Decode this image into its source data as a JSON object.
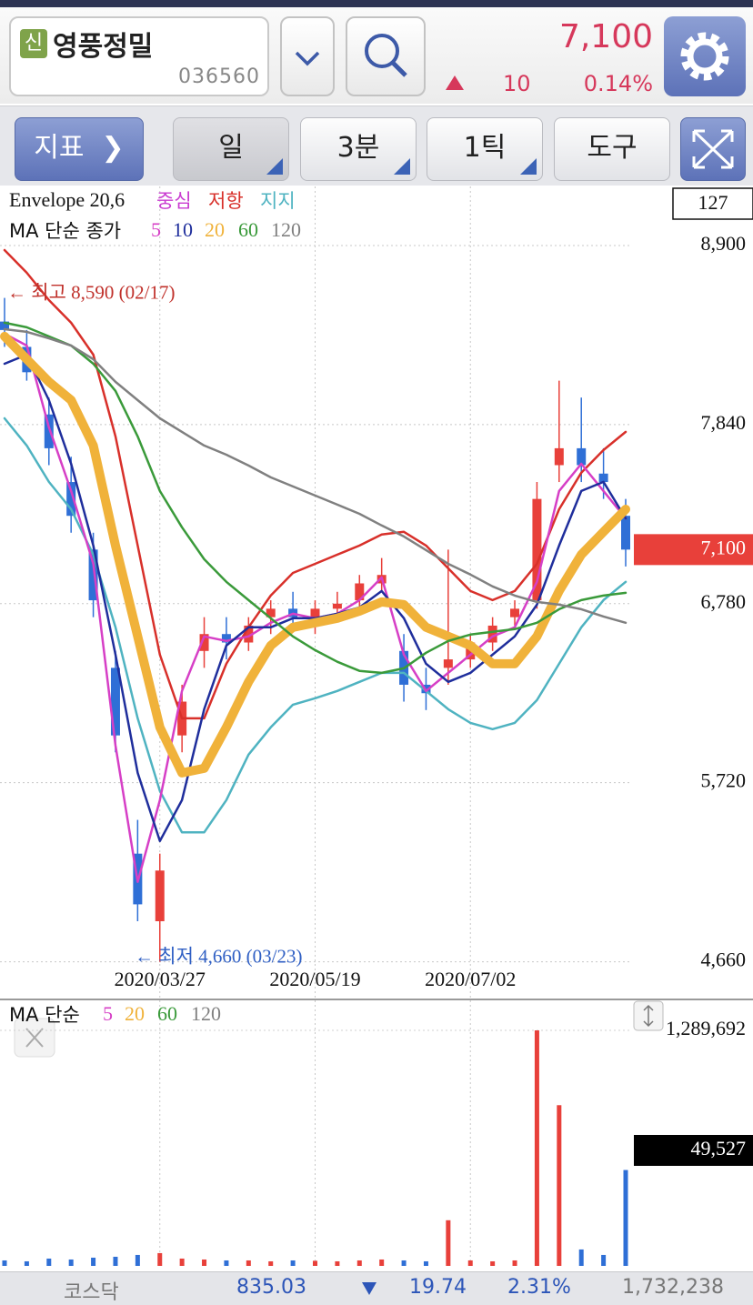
{
  "header": {
    "badge": "신",
    "name": "영풍정밀",
    "code": "036560",
    "price": "7,100",
    "change": "10",
    "change_pct": "0.14%"
  },
  "toolbar": {
    "indicator": "지표",
    "buttons": [
      "일",
      "3분",
      "1틱",
      "도구"
    ]
  },
  "chart_data": [
    {
      "type": "candlestick",
      "legend_title": "Envelope 20,6",
      "center_label": {
        "label": "중심",
        "color": "#c93bd0"
      },
      "ma_title": "MA 단순 종가",
      "candle_count": "127",
      "categories": [
        null,
        null,
        null,
        null,
        null,
        null,
        null,
        "2020/03/27",
        null,
        null,
        null,
        null,
        null,
        null,
        "2020/05/19",
        null,
        null,
        null,
        null,
        null,
        null,
        "2020/07/02",
        null,
        null,
        null,
        null,
        null,
        null,
        null
      ],
      "open": [
        8450,
        8300,
        7900,
        7500,
        7100,
        6400,
        5300,
        4900,
        6000,
        6500,
        6600,
        6550,
        6700,
        6750,
        6700,
        6750,
        6800,
        6900,
        6500,
        6300,
        6400,
        6450,
        6550,
        6700,
        6800,
        7600,
        7700,
        7550,
        7300
      ],
      "high": [
        8590,
        8400,
        8000,
        7650,
        7200,
        6500,
        5500,
        5300,
        6300,
        6700,
        6700,
        6700,
        6800,
        6850,
        6800,
        6850,
        6950,
        7050,
        6600,
        6400,
        7100,
        6600,
        6700,
        6800,
        7500,
        8100,
        8000,
        7700,
        7400
      ],
      "low": [
        8300,
        8100,
        7600,
        7200,
        6700,
        5900,
        4900,
        4660,
        5900,
        6400,
        6450,
        6500,
        6600,
        6650,
        6600,
        6700,
        6750,
        6850,
        6200,
        6150,
        6300,
        6400,
        6500,
        6650,
        6750,
        7500,
        7500,
        7400,
        7000
      ],
      "close": [
        8400,
        8150,
        7700,
        7300,
        6800,
        6000,
        5000,
        5200,
        6200,
        6600,
        6550,
        6650,
        6750,
        6700,
        6750,
        6780,
        6900,
        6950,
        6300,
        6250,
        6450,
        6550,
        6650,
        6750,
        7400,
        7700,
        7600,
        7500,
        7100
      ],
      "up_color": "#e8403a",
      "down_color": "#2f6fd6",
      "series": [
        {
          "name": "저항",
          "color": "#d8302a",
          "width": 2.5,
          "values": [
            8873,
            8739,
            8577,
            8443,
            8254,
            7770,
            7124,
            6478,
            6101,
            6101,
            6424,
            6640,
            6828,
            6962,
            7016,
            7070,
            7124,
            7189,
            7205,
            7124,
            6989,
            6855,
            6801,
            6855,
            7016,
            7339,
            7555,
            7689,
            7797
          ]
        },
        {
          "name": "지지",
          "color": "#4fb3c1",
          "width": 2.5,
          "values": [
            7877,
            7716,
            7501,
            7339,
            7070,
            6640,
            6101,
            5671,
            5426,
            5426,
            5617,
            5886,
            6048,
            6182,
            6220,
            6263,
            6317,
            6370,
            6370,
            6263,
            6155,
            6074,
            6037,
            6074,
            6209,
            6424,
            6640,
            6801,
            6909
          ]
        },
        {
          "name": "5",
          "color": "#d63fc6",
          "width": 2.5,
          "values": [
            8378,
            8308,
            7824,
            7447,
            7016,
            5940,
            5133,
            5617,
            6263,
            6586,
            6559,
            6586,
            6667,
            6720,
            6694,
            6720,
            6801,
            6935,
            6478,
            6263,
            6370,
            6478,
            6586,
            6640,
            6909,
            7447,
            7608,
            7447,
            7285
          ]
        },
        {
          "name": "10",
          "color": "#1f2e9c",
          "width": 2.5,
          "values": [
            8200,
            8254,
            7985,
            7608,
            7124,
            6478,
            5778,
            5375,
            5617,
            6155,
            6532,
            6640,
            6640,
            6694,
            6694,
            6720,
            6758,
            6855,
            6694,
            6424,
            6317,
            6370,
            6478,
            6586,
            6774,
            7124,
            7447,
            7501,
            7285
          ]
        },
        {
          "name": "20",
          "color": "#f0b23a",
          "width": 10,
          "values": [
            8362,
            8227,
            8093,
            7985,
            7716,
            7124,
            6586,
            6048,
            5778,
            5805,
            6048,
            6317,
            6532,
            6640,
            6667,
            6694,
            6736,
            6790,
            6774,
            6640,
            6586,
            6532,
            6424,
            6424,
            6586,
            6855,
            7070,
            7205,
            7339
          ]
        },
        {
          "name": "60",
          "color": "#3a9a3a",
          "width": 2.5,
          "values": [
            8443,
            8416,
            8362,
            8308,
            8200,
            8039,
            7770,
            7447,
            7232,
            7043,
            6909,
            6801,
            6694,
            6586,
            6505,
            6436,
            6382,
            6370,
            6397,
            6489,
            6559,
            6597,
            6613,
            6629,
            6667,
            6747,
            6801,
            6828,
            6844
          ]
        },
        {
          "name": "120",
          "color": "#808080",
          "width": 2.5,
          "values": [
            8405,
            8389,
            8351,
            8308,
            8227,
            8093,
            7985,
            7877,
            7797,
            7716,
            7662,
            7598,
            7528,
            7474,
            7420,
            7366,
            7312,
            7243,
            7178,
            7097,
            7016,
            6952,
            6882,
            6828,
            6790,
            6774,
            6747,
            6704,
            6667
          ]
        }
      ],
      "ylim": [
        4620,
        9250
      ],
      "yticks": [
        {
          "value": 8900,
          "label": "8,900"
        },
        {
          "value": 7840,
          "label": "7,840"
        },
        {
          "value": 6780,
          "label": "6,780"
        },
        {
          "value": 5720,
          "label": "5,720"
        },
        {
          "value": 4660,
          "label": "4,660"
        }
      ],
      "current_price": {
        "value": 7100,
        "label": "7,100"
      },
      "annotations": [
        {
          "text": "← 최고 8,590 (02/17)",
          "value": 8590,
          "color": "#c0302a"
        },
        {
          "text": "← 최저 4,660 (03/23)",
          "value": 4660,
          "color": "#2f5fc4"
        }
      ],
      "grid": true
    },
    {
      "type": "bar",
      "legend_title": "MA 단순",
      "legend_items": [
        {
          "label": "5",
          "color": "#d63fc6"
        },
        {
          "label": "20",
          "color": "#f0b23a"
        },
        {
          "label": "60",
          "color": "#3a9a3a"
        },
        {
          "label": "120",
          "color": "#808080"
        }
      ],
      "values": [
        30000,
        25000,
        40000,
        35000,
        45000,
        50000,
        60000,
        70000,
        40000,
        35000,
        30000,
        30000,
        25000,
        30000,
        28000,
        25000,
        30000,
        35000,
        30000,
        25000,
        250000,
        30000,
        25000,
        30000,
        1289692,
        880000,
        90000,
        60000,
        525000
      ],
      "ylim": [
        0,
        1289692
      ],
      "yticks": [
        {
          "value": 1289692,
          "label": "1,289,692"
        }
      ],
      "current_value": {
        "value": 49527,
        "label": "49,527"
      },
      "grid": true
    }
  ],
  "footer": {
    "index_name": "코스닥",
    "index_value": "835.03",
    "change": "19.74",
    "change_pct": "2.31%",
    "volume": "1,732,238"
  }
}
